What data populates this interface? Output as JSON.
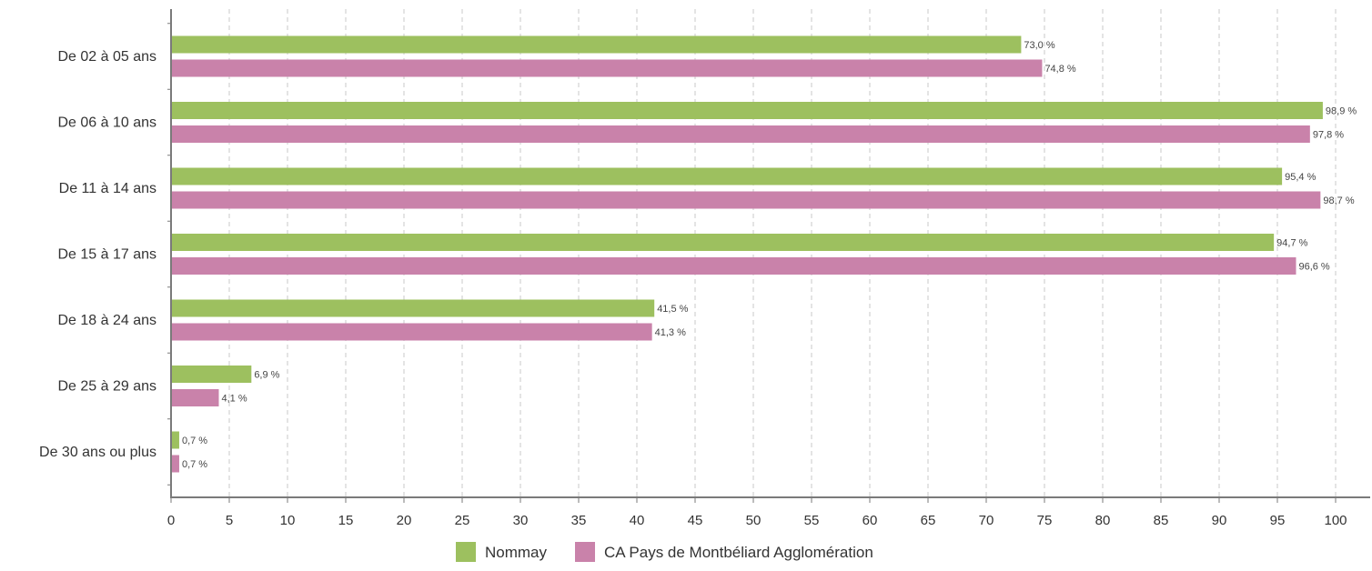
{
  "chart_data": {
    "type": "bar",
    "orientation": "horizontal",
    "categories": [
      "De 02 à 05 ans",
      "De 06 à 10 ans",
      "De 11 à 14 ans",
      "De 15 à 17 ans",
      "De 18 à 24 ans",
      "De 25 à 29 ans",
      "De 30 ans ou plus"
    ],
    "series": [
      {
        "name": "Nommay",
        "color": "#9dc05f",
        "values": [
          73.0,
          98.9,
          95.4,
          94.7,
          41.5,
          6.9,
          0.7
        ],
        "labels": [
          "73,0 %",
          "98,9 %",
          "95,4 %",
          "94,7 %",
          "41,5 %",
          "6,9 %",
          "0,7 %"
        ]
      },
      {
        "name": "CA Pays de Montbéliard Agglomération",
        "color": "#c982aa",
        "values": [
          74.8,
          97.8,
          98.7,
          96.6,
          41.3,
          4.1,
          0.7
        ],
        "labels": [
          "74,8 %",
          "97,8 %",
          "98,7 %",
          "96,6 %",
          "41,3 %",
          "4,1 %",
          "0,7 %"
        ]
      }
    ],
    "xlim": [
      0,
      100
    ],
    "xticks": [
      0,
      5,
      10,
      15,
      20,
      25,
      30,
      35,
      40,
      45,
      50,
      55,
      60,
      65,
      70,
      75,
      80,
      85,
      90,
      95,
      100
    ],
    "grid": "vertical dashed",
    "legend": "bottom-center",
    "title": "",
    "xlabel": "",
    "ylabel": ""
  }
}
